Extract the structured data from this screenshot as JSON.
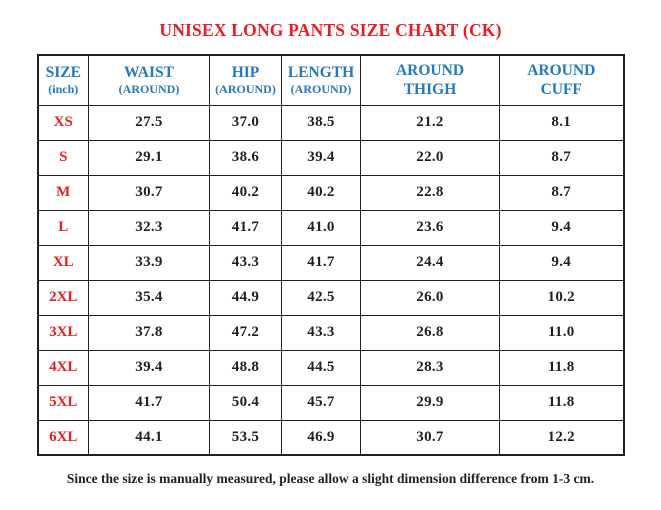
{
  "page": {
    "title": "UNISEX LONG PANTS SIZE CHART (CK)",
    "note": "Since the size is manually measured, please allow a slight dimension difference from 1-3 cm."
  },
  "colors": {
    "title_red": "#ec1c24",
    "header_blue": "#2579be",
    "size_label_red": "#ec1c24",
    "value_black": "#231f20",
    "border_black": "#231f20",
    "background": "#ffffff"
  },
  "chart_data": {
    "type": "table",
    "title": "UNISEX LONG PANTS SIZE CHART (CK)",
    "columns": [
      {
        "top": "SIZE",
        "bottom": "(inch)",
        "bottom_small": true
      },
      {
        "top": "WAIST",
        "bottom": "(AROUND)",
        "bottom_small": true
      },
      {
        "top": "HIP",
        "bottom": "(AROUND)",
        "bottom_small": true
      },
      {
        "top": "LENGTH",
        "bottom": "(AROUND)",
        "bottom_small": true
      },
      {
        "top": "AROUND",
        "bottom": "THIGH",
        "bottom_small": false
      },
      {
        "top": "AROUND",
        "bottom": "CUFF",
        "bottom_small": false
      }
    ],
    "rows": [
      {
        "size": "XS",
        "values": [
          "27.5",
          "37.0",
          "38.5",
          "21.2",
          "8.1"
        ]
      },
      {
        "size": "S",
        "values": [
          "29.1",
          "38.6",
          "39.4",
          "22.0",
          "8.7"
        ]
      },
      {
        "size": "M",
        "values": [
          "30.7",
          "40.2",
          "40.2",
          "22.8",
          "8.7"
        ]
      },
      {
        "size": "L",
        "values": [
          "32.3",
          "41.7",
          "41.0",
          "23.6",
          "9.4"
        ]
      },
      {
        "size": "XL",
        "values": [
          "33.9",
          "43.3",
          "41.7",
          "24.4",
          "9.4"
        ]
      },
      {
        "size": "2XL",
        "values": [
          "35.4",
          "44.9",
          "42.5",
          "26.0",
          "10.2"
        ]
      },
      {
        "size": "3XL",
        "values": [
          "37.8",
          "47.2",
          "43.3",
          "26.8",
          "11.0"
        ]
      },
      {
        "size": "4XL",
        "values": [
          "39.4",
          "48.8",
          "44.5",
          "28.3",
          "11.8"
        ]
      },
      {
        "size": "5XL",
        "values": [
          "41.7",
          "50.4",
          "45.7",
          "29.9",
          "11.8"
        ]
      },
      {
        "size": "6XL",
        "values": [
          "44.1",
          "53.5",
          "46.9",
          "30.7",
          "12.2"
        ]
      }
    ]
  }
}
